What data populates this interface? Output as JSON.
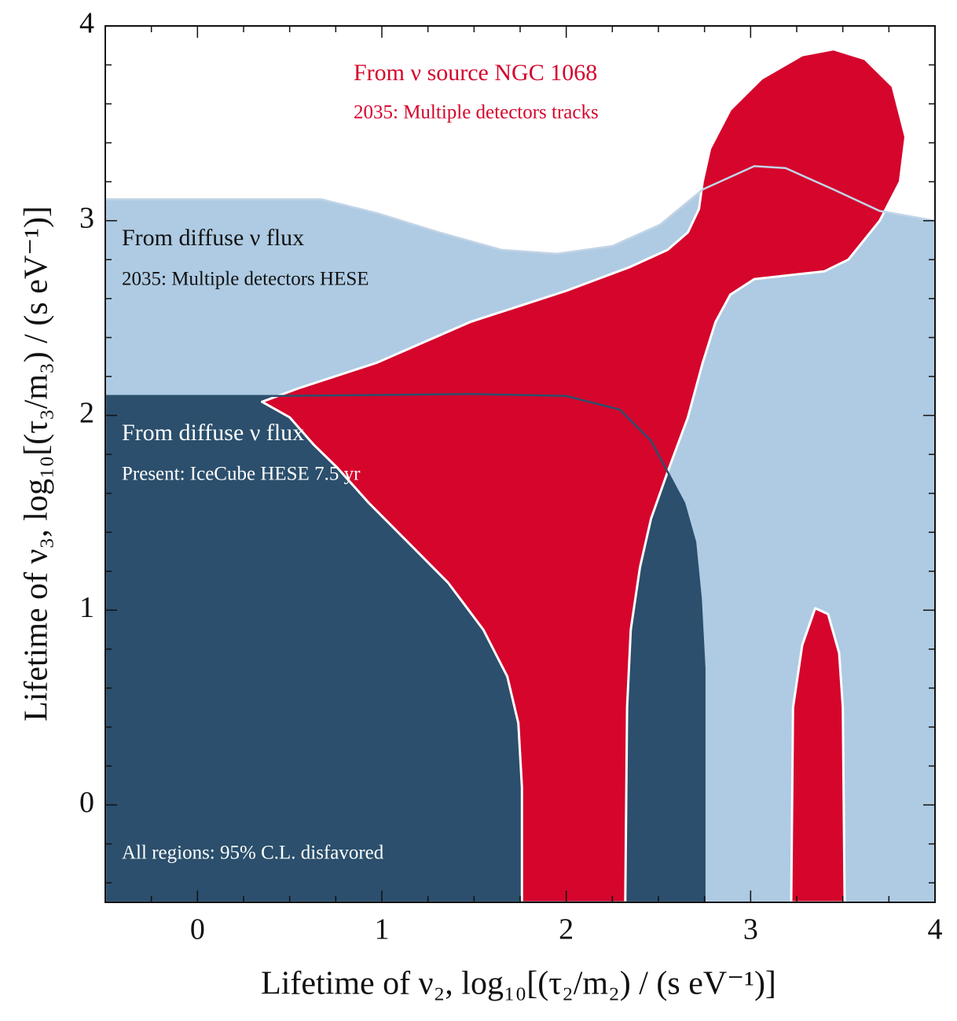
{
  "chart_data": {
    "type": "contour",
    "x_label": "Lifetime of ν₂, log₁₀[(τ₂/m₂) / (s eV⁻¹)]",
    "y_label": "Lifetime of ν₃, log₁₀[(τ₃/m₃) / (s eV⁻¹)]",
    "xlim": [
      -0.5,
      4
    ],
    "ylim": [
      -0.5,
      4
    ],
    "xticks": [
      0,
      1,
      2,
      3,
      4
    ],
    "yticks": [
      0,
      1,
      2,
      3,
      4
    ],
    "xminorticks": [
      -0.25,
      0.25,
      0.5,
      0.75,
      1.25,
      1.5,
      1.75,
      2.25,
      2.5,
      2.75,
      3.25,
      3.5,
      3.75
    ],
    "yminorticks": [
      -0.4,
      -0.2,
      0.2,
      0.4,
      0.6,
      0.8,
      1.2,
      1.4,
      1.6,
      1.8,
      2.2,
      2.4,
      2.6,
      2.8,
      3.2,
      3.4,
      3.6,
      3.8
    ],
    "annotations": [
      "From ν source NGC 1068",
      "2035: Multiple detectors tracks",
      "From diffuse ν flux",
      "2035: Multiple detectors HESE",
      "From diffuse ν flux",
      "Present: IceCube HESE 7.5 yr",
      "All regions: 95% C.L. disfavored"
    ],
    "regions": [
      {
        "color": "#aecbe3",
        "edge": "#c2d4e6",
        "x": [
          -0.5,
          0.67,
          0.97,
          1.31,
          1.65,
          1.95,
          2.25,
          2.51,
          2.74,
          3.02,
          3.19,
          3.45,
          3.7,
          4,
          4,
          -0.5
        ],
        "y": [
          3.11,
          3.11,
          3.04,
          2.94,
          2.85,
          2.83,
          2.87,
          2.98,
          3.16,
          3.28,
          3.27,
          3.16,
          3.05,
          3.0,
          -0.5,
          -0.5
        ]
      },
      {
        "color": "#2b4f6c",
        "edge": "#2b4f6c",
        "x": [
          -0.5,
          0.42,
          1.48,
          2.0,
          2.29,
          2.46,
          2.55,
          2.64,
          2.7,
          2.73,
          2.75,
          2.75,
          -0.5
        ],
        "y": [
          2.1,
          2.1,
          2.11,
          2.1,
          2.03,
          1.87,
          1.71,
          1.55,
          1.35,
          1.06,
          0.7,
          -0.5,
          -0.5
        ]
      },
      {
        "color": "#d5052c",
        "edge": "#ffffff",
        "x": [
          0.35,
          0.55,
          0.97,
          1.48,
          2.0,
          2.34,
          2.55,
          2.66,
          2.72,
          2.74,
          2.78,
          2.89,
          3.06,
          3.28,
          3.45,
          3.62,
          3.77,
          3.84,
          3.81,
          3.7,
          3.53,
          3.4,
          3.02,
          2.89,
          2.81,
          2.74,
          2.66,
          2.55,
          2.46,
          2.4,
          2.35,
          2.33,
          2.32,
          1.76,
          1.76,
          1.74,
          1.68,
          1.55,
          1.36,
          1.14,
          0.93,
          0.76,
          0.63,
          0.5
        ],
        "y": [
          2.07,
          2.14,
          2.27,
          2.48,
          2.64,
          2.76,
          2.85,
          2.94,
          3.06,
          3.2,
          3.37,
          3.57,
          3.73,
          3.85,
          3.88,
          3.83,
          3.69,
          3.43,
          3.2,
          3.0,
          2.8,
          2.74,
          2.7,
          2.62,
          2.48,
          2.27,
          1.99,
          1.71,
          1.47,
          1.22,
          0.9,
          0.5,
          -0.5,
          -0.5,
          0.09,
          0.42,
          0.66,
          0.9,
          1.14,
          1.35,
          1.55,
          1.73,
          1.85,
          1.99
        ]
      },
      {
        "color": "#d5052c",
        "edge": "#ffffff",
        "x": [
          3.22,
          3.23,
          3.28,
          3.35,
          3.42,
          3.48,
          3.5,
          3.51
        ],
        "y": [
          -0.5,
          0.5,
          0.82,
          1.01,
          0.98,
          0.78,
          0.5,
          -0.5
        ]
      }
    ]
  }
}
